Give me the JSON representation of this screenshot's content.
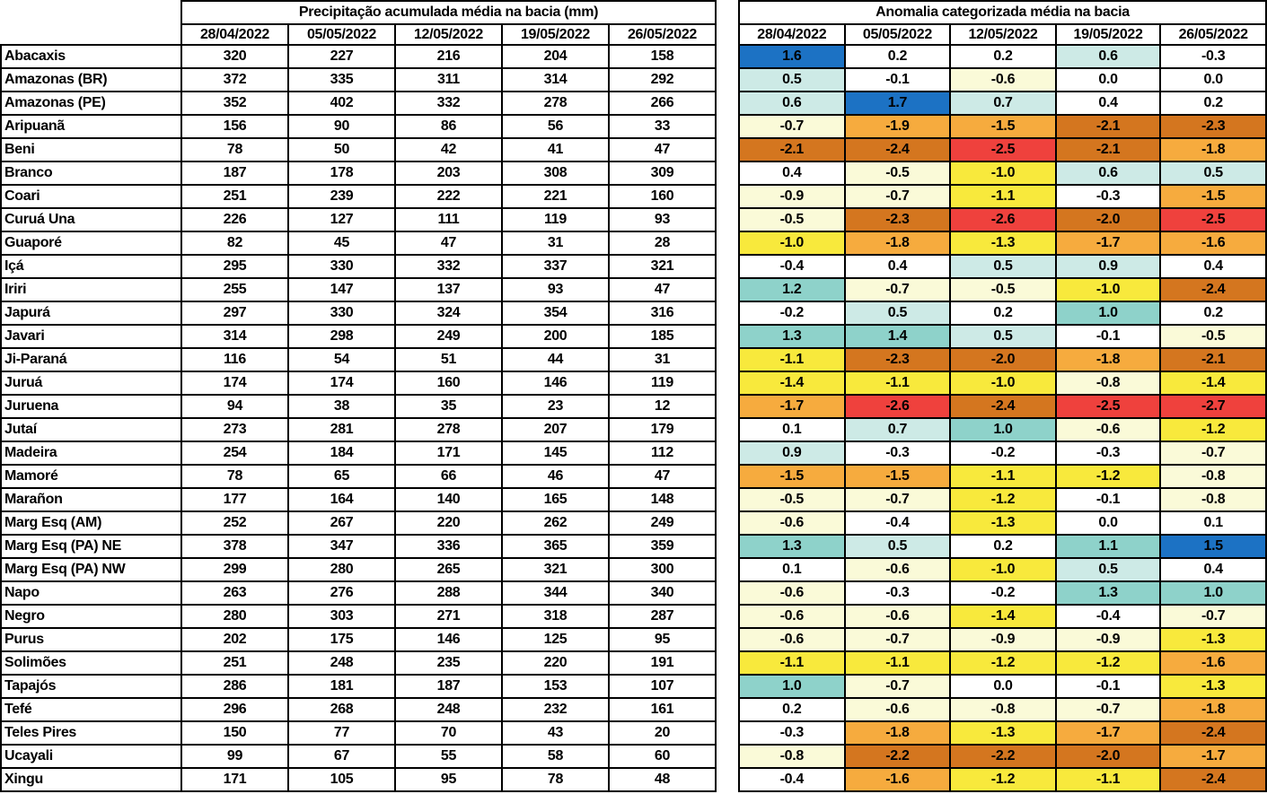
{
  "dates": [
    "28/04/2022",
    "05/05/2022",
    "12/05/2022",
    "19/05/2022",
    "26/05/2022"
  ],
  "precipitation": {
    "title": "Precipitação acumulada média na bacia (mm)"
  },
  "anomaly": {
    "title": "Anomalia categorizada média na bacia"
  },
  "chart_data": [
    {
      "type": "table",
      "name": "precipitation_accumulated_mm",
      "title": "Precipitação acumulada média na bacia (mm)",
      "columns": [
        "28/04/2022",
        "05/05/2022",
        "12/05/2022",
        "19/05/2022",
        "26/05/2022"
      ],
      "rows": [
        {
          "basin": "Abacaxis",
          "values": [
            320,
            227,
            216,
            204,
            158
          ]
        },
        {
          "basin": "Amazonas (BR)",
          "values": [
            372,
            335,
            311,
            314,
            292
          ]
        },
        {
          "basin": "Amazonas (PE)",
          "values": [
            352,
            402,
            332,
            278,
            266
          ]
        },
        {
          "basin": "Aripuanã",
          "values": [
            156,
            90,
            86,
            56,
            33
          ]
        },
        {
          "basin": "Beni",
          "values": [
            78,
            50,
            42,
            41,
            47
          ]
        },
        {
          "basin": "Branco",
          "values": [
            187,
            178,
            203,
            308,
            309
          ]
        },
        {
          "basin": "Coari",
          "values": [
            251,
            239,
            222,
            221,
            160
          ]
        },
        {
          "basin": "Curuá Una",
          "values": [
            226,
            127,
            111,
            119,
            93
          ]
        },
        {
          "basin": "Guaporé",
          "values": [
            82,
            45,
            47,
            31,
            28
          ]
        },
        {
          "basin": "Içá",
          "values": [
            295,
            330,
            332,
            337,
            321
          ]
        },
        {
          "basin": "Iriri",
          "values": [
            255,
            147,
            137,
            93,
            47
          ]
        },
        {
          "basin": "Japurá",
          "values": [
            297,
            330,
            324,
            354,
            316
          ]
        },
        {
          "basin": "Javari",
          "values": [
            314,
            298,
            249,
            200,
            185
          ]
        },
        {
          "basin": "Ji-Paraná",
          "values": [
            116,
            54,
            51,
            44,
            31
          ]
        },
        {
          "basin": "Juruá",
          "values": [
            174,
            174,
            160,
            146,
            119
          ]
        },
        {
          "basin": "Juruena",
          "values": [
            94,
            38,
            35,
            23,
            12
          ]
        },
        {
          "basin": "Jutaí",
          "values": [
            273,
            281,
            278,
            207,
            179
          ]
        },
        {
          "basin": "Madeira",
          "values": [
            254,
            184,
            171,
            145,
            112
          ]
        },
        {
          "basin": "Mamoré",
          "values": [
            78,
            65,
            66,
            46,
            47
          ]
        },
        {
          "basin": "Marañon",
          "values": [
            177,
            164,
            140,
            165,
            148
          ]
        },
        {
          "basin": "Marg Esq (AM)",
          "values": [
            252,
            267,
            220,
            262,
            249
          ]
        },
        {
          "basin": "Marg Esq (PA) NE",
          "values": [
            378,
            347,
            336,
            365,
            359
          ]
        },
        {
          "basin": "Marg Esq (PA) NW",
          "values": [
            299,
            280,
            265,
            321,
            300
          ]
        },
        {
          "basin": "Napo",
          "values": [
            263,
            276,
            288,
            344,
            340
          ]
        },
        {
          "basin": "Negro",
          "values": [
            280,
            303,
            271,
            318,
            287
          ]
        },
        {
          "basin": "Purus",
          "values": [
            202,
            175,
            146,
            125,
            95
          ]
        },
        {
          "basin": "Solimões",
          "values": [
            251,
            248,
            235,
            220,
            191
          ]
        },
        {
          "basin": "Tapajós",
          "values": [
            286,
            181,
            187,
            153,
            107
          ]
        },
        {
          "basin": "Tefé",
          "values": [
            296,
            268,
            248,
            232,
            161
          ]
        },
        {
          "basin": "Teles Pires",
          "values": [
            150,
            77,
            70,
            43,
            20
          ]
        },
        {
          "basin": "Ucayali",
          "values": [
            99,
            67,
            55,
            58,
            60
          ]
        },
        {
          "basin": "Xingu",
          "values": [
            171,
            105,
            95,
            78,
            48
          ]
        }
      ]
    },
    {
      "type": "heatmap",
      "name": "anomaly_categorized",
      "title": "Anomalia categorizada média na bacia",
      "columns": [
        "28/04/2022",
        "05/05/2022",
        "12/05/2022",
        "19/05/2022",
        "26/05/2022"
      ],
      "rows": [
        {
          "basin": "Abacaxis",
          "values": [
            1.6,
            0.2,
            0.2,
            0.6,
            -0.3
          ]
        },
        {
          "basin": "Amazonas (BR)",
          "values": [
            0.5,
            -0.1,
            -0.6,
            0.0,
            0.0
          ]
        },
        {
          "basin": "Amazonas (PE)",
          "values": [
            0.6,
            1.7,
            0.7,
            0.4,
            0.2
          ]
        },
        {
          "basin": "Aripuanã",
          "values": [
            -0.7,
            -1.9,
            -1.5,
            -2.1,
            -2.3
          ]
        },
        {
          "basin": "Beni",
          "values": [
            -2.1,
            -2.4,
            -2.5,
            -2.1,
            -1.8
          ]
        },
        {
          "basin": "Branco",
          "values": [
            0.4,
            -0.5,
            -1.0,
            0.6,
            0.5
          ]
        },
        {
          "basin": "Coari",
          "values": [
            -0.9,
            -0.7,
            -1.1,
            -0.3,
            -1.5
          ]
        },
        {
          "basin": "Curuá Una",
          "values": [
            -0.5,
            -2.3,
            -2.6,
            -2.0,
            -2.5
          ]
        },
        {
          "basin": "Guaporé",
          "values": [
            -1.0,
            -1.8,
            -1.3,
            -1.7,
            -1.6
          ]
        },
        {
          "basin": "Içá",
          "values": [
            -0.4,
            0.4,
            0.5,
            0.9,
            0.4
          ]
        },
        {
          "basin": "Iriri",
          "values": [
            1.2,
            -0.7,
            -0.5,
            -1.0,
            -2.4
          ]
        },
        {
          "basin": "Japurá",
          "values": [
            -0.2,
            0.5,
            0.2,
            1.0,
            0.2
          ]
        },
        {
          "basin": "Javari",
          "values": [
            1.3,
            1.4,
            0.5,
            -0.1,
            -0.5
          ]
        },
        {
          "basin": "Ji-Paraná",
          "values": [
            -1.1,
            -2.3,
            -2.0,
            -1.8,
            -2.1
          ]
        },
        {
          "basin": "Juruá",
          "values": [
            -1.4,
            -1.1,
            -1.0,
            -0.8,
            -1.4
          ]
        },
        {
          "basin": "Juruena",
          "values": [
            -1.7,
            -2.6,
            -2.4,
            -2.5,
            -2.7
          ]
        },
        {
          "basin": "Jutaí",
          "values": [
            0.1,
            0.7,
            1.0,
            -0.6,
            -1.2
          ]
        },
        {
          "basin": "Madeira",
          "values": [
            0.9,
            -0.3,
            -0.2,
            -0.3,
            -0.7
          ]
        },
        {
          "basin": "Mamoré",
          "values": [
            -1.5,
            -1.5,
            -1.1,
            -1.2,
            -0.8
          ]
        },
        {
          "basin": "Marañon",
          "values": [
            -0.5,
            -0.7,
            -1.2,
            -0.1,
            -0.8
          ]
        },
        {
          "basin": "Marg Esq (AM)",
          "values": [
            -0.6,
            -0.4,
            -1.3,
            0.0,
            0.1
          ]
        },
        {
          "basin": "Marg Esq (PA) NE",
          "values": [
            1.3,
            0.5,
            0.2,
            1.1,
            1.5
          ]
        },
        {
          "basin": "Marg Esq (PA) NW",
          "values": [
            0.1,
            -0.6,
            -1.0,
            0.5,
            0.4
          ]
        },
        {
          "basin": "Napo",
          "values": [
            -0.6,
            -0.3,
            -0.2,
            1.3,
            1.0
          ]
        },
        {
          "basin": "Negro",
          "values": [
            -0.6,
            -0.6,
            -1.4,
            -0.4,
            -0.7
          ]
        },
        {
          "basin": "Purus",
          "values": [
            -0.6,
            -0.7,
            -0.9,
            -0.9,
            -1.3
          ]
        },
        {
          "basin": "Solimões",
          "values": [
            -1.1,
            -1.1,
            -1.2,
            -1.2,
            -1.6
          ]
        },
        {
          "basin": "Tapajós",
          "values": [
            1.0,
            -0.7,
            0.0,
            -0.1,
            -1.3
          ]
        },
        {
          "basin": "Tefé",
          "values": [
            0.2,
            -0.6,
            -0.8,
            -0.7,
            -1.8
          ]
        },
        {
          "basin": "Teles Pires",
          "values": [
            -0.3,
            -1.8,
            -1.3,
            -1.7,
            -2.4
          ]
        },
        {
          "basin": "Ucayali",
          "values": [
            -0.8,
            -2.2,
            -2.2,
            -2.0,
            -1.7
          ]
        },
        {
          "basin": "Xingu",
          "values": [
            -0.4,
            -1.6,
            -1.2,
            -1.1,
            -2.4
          ]
        }
      ],
      "color_bins": [
        {
          "min": 1.45,
          "max": 9.9,
          "color": "#1c72c4",
          "category": "anomaly >= 1.5"
        },
        {
          "min": 0.95,
          "max": 1.44,
          "color": "#8ed2ca",
          "category": "1.0 to 1.4"
        },
        {
          "min": 0.45,
          "max": 0.94,
          "color": "#cdeae6",
          "category": "0.5 to 0.9"
        },
        {
          "min": -0.44,
          "max": 0.44,
          "color": "#ffffff",
          "category": "-0.4 to 0.4"
        },
        {
          "min": -0.94,
          "max": -0.45,
          "color": "#fafad8",
          "category": "-0.9 to -0.5"
        },
        {
          "min": -1.44,
          "max": -0.95,
          "color": "#f8e93c",
          "category": "-1.4 to -1.0"
        },
        {
          "min": -1.94,
          "max": -1.45,
          "color": "#f6ab3e",
          "category": "-1.9 to -1.5"
        },
        {
          "min": -2.44,
          "max": -1.95,
          "color": "#d4761f",
          "category": "-2.4 to -2.0"
        },
        {
          "min": -9.9,
          "max": -2.45,
          "color": "#ef413d",
          "category": "anomaly <= -2.5"
        }
      ]
    }
  ]
}
